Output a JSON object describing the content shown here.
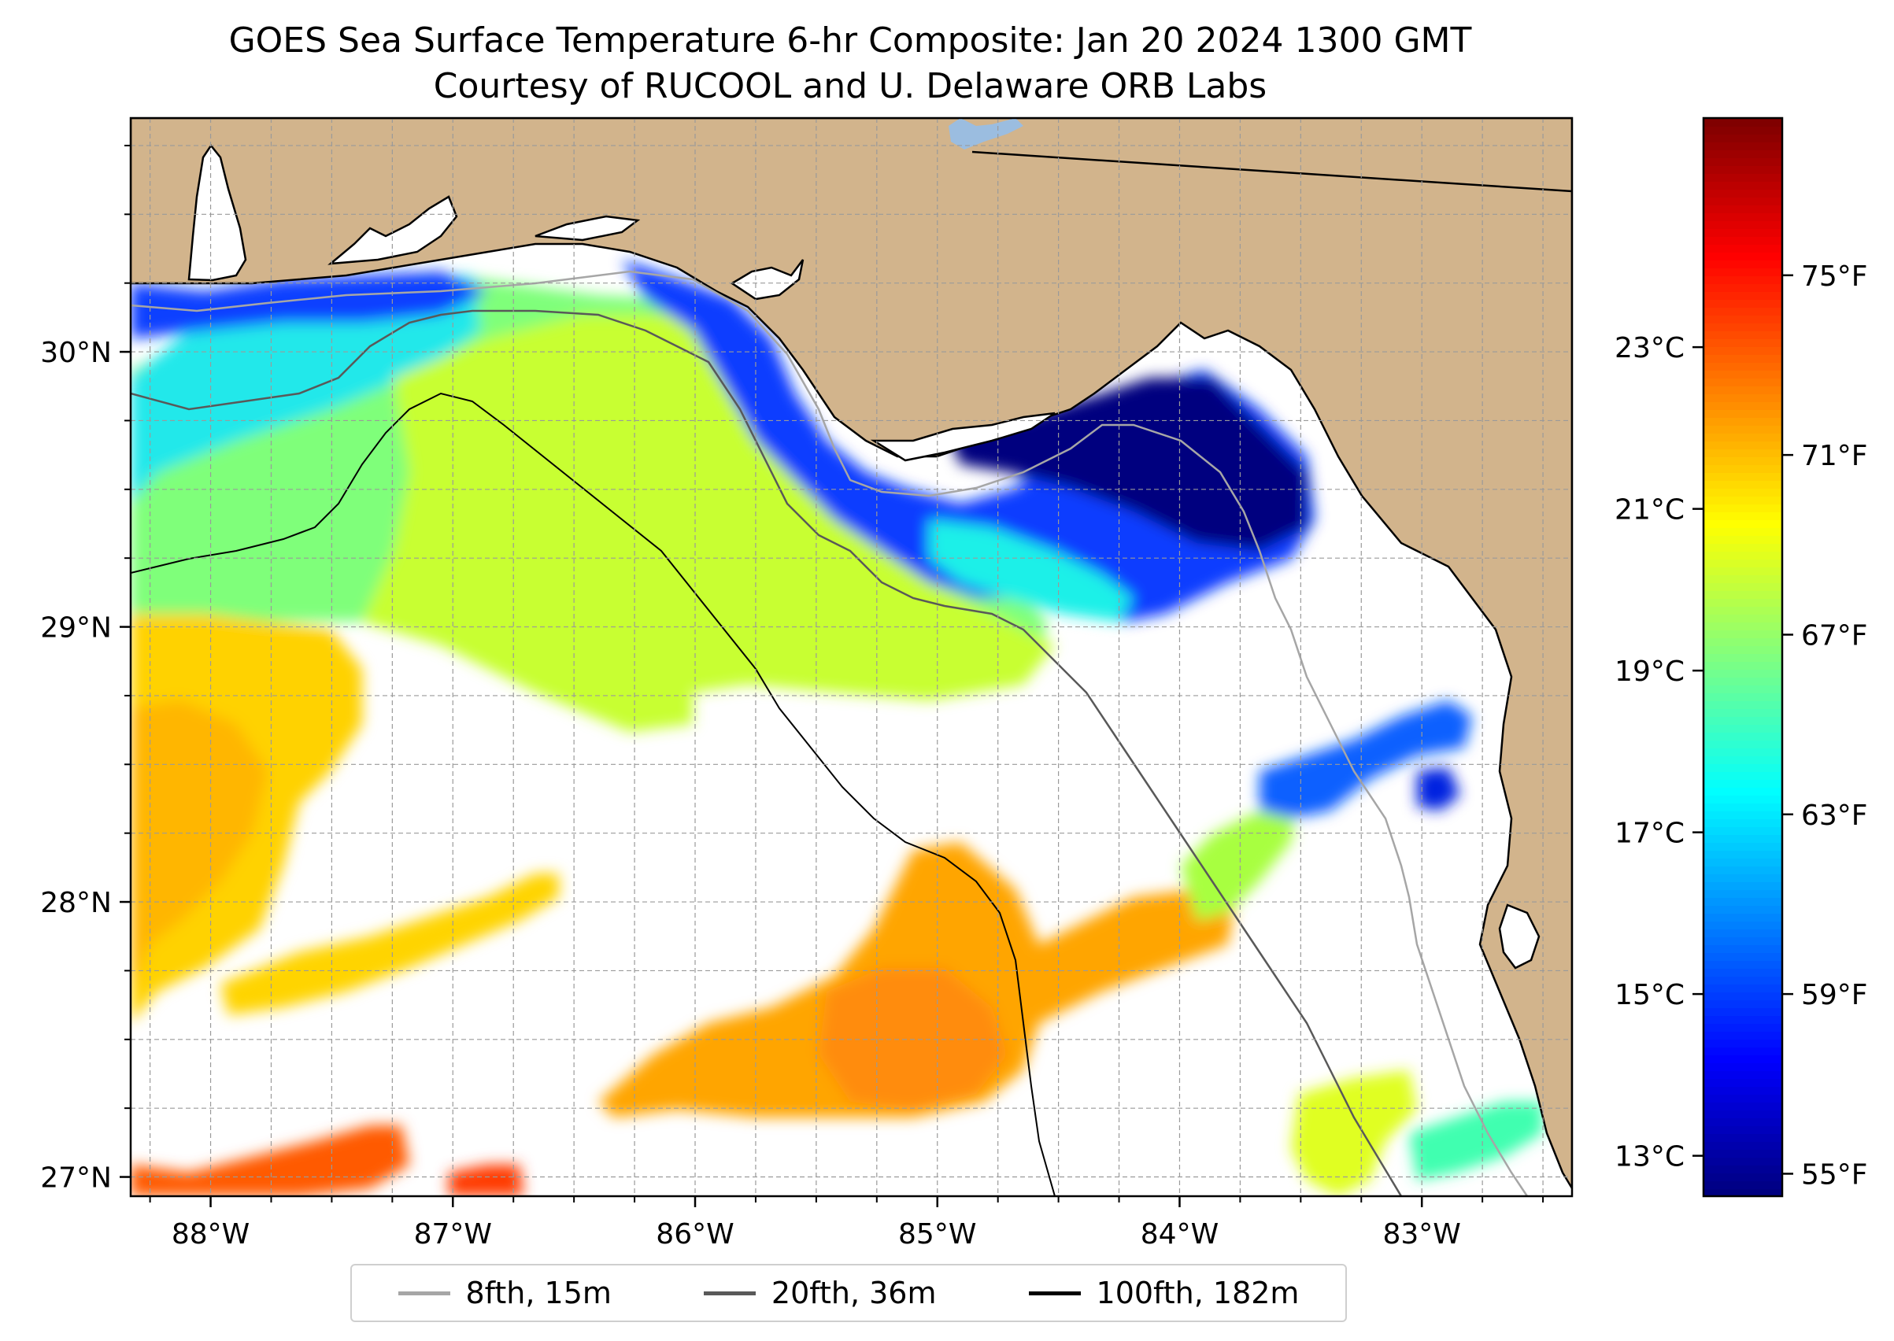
{
  "title": {
    "line1": "GOES Sea Surface Temperature 6-hr Composite: Jan 20 2024 1300 GMT",
    "line2": "Courtesy of RUCOOL and U. Delaware ORB Labs"
  },
  "map": {
    "extent": {
      "lon_min": -88.33,
      "lon_max": -82.38,
      "lat_min": 26.93,
      "lat_max": 30.85
    },
    "lon_ticks": [
      {
        "value": -88,
        "label": "88°W"
      },
      {
        "value": -87,
        "label": "87°W"
      },
      {
        "value": -86,
        "label": "86°W"
      },
      {
        "value": -85,
        "label": "85°W"
      },
      {
        "value": -84,
        "label": "84°W"
      },
      {
        "value": -83,
        "label": "83°W"
      }
    ],
    "lat_ticks": [
      {
        "value": 27,
        "label": "27°N"
      },
      {
        "value": 28,
        "label": "28°N"
      },
      {
        "value": 29,
        "label": "29°N"
      },
      {
        "value": 30,
        "label": "30°N"
      }
    ],
    "land_color": "#d2b48c",
    "gridlines": true
  },
  "colorbar": {
    "colormap": "jet",
    "min_f": 54.5,
    "max_f": 78.5,
    "f_ticks": [
      {
        "value": 55,
        "label": "55°F"
      },
      {
        "value": 59,
        "label": "59°F"
      },
      {
        "value": 63,
        "label": "63°F"
      },
      {
        "value": 67,
        "label": "67°F"
      },
      {
        "value": 71,
        "label": "71°F"
      },
      {
        "value": 75,
        "label": "75°F"
      }
    ],
    "c_ticks": [
      {
        "value": 13,
        "label": "13°C"
      },
      {
        "value": 15,
        "label": "15°C"
      },
      {
        "value": 17,
        "label": "17°C"
      },
      {
        "value": 19,
        "label": "19°C"
      },
      {
        "value": 21,
        "label": "21°C"
      },
      {
        "value": 23,
        "label": "23°C"
      }
    ]
  },
  "legend": {
    "items": [
      {
        "label": "8fth, 15m",
        "color": "#a6a6a6"
      },
      {
        "label": "20fth, 36m",
        "color": "#595959"
      },
      {
        "label": "100fth, 182m",
        "color": "#000000"
      }
    ]
  }
}
